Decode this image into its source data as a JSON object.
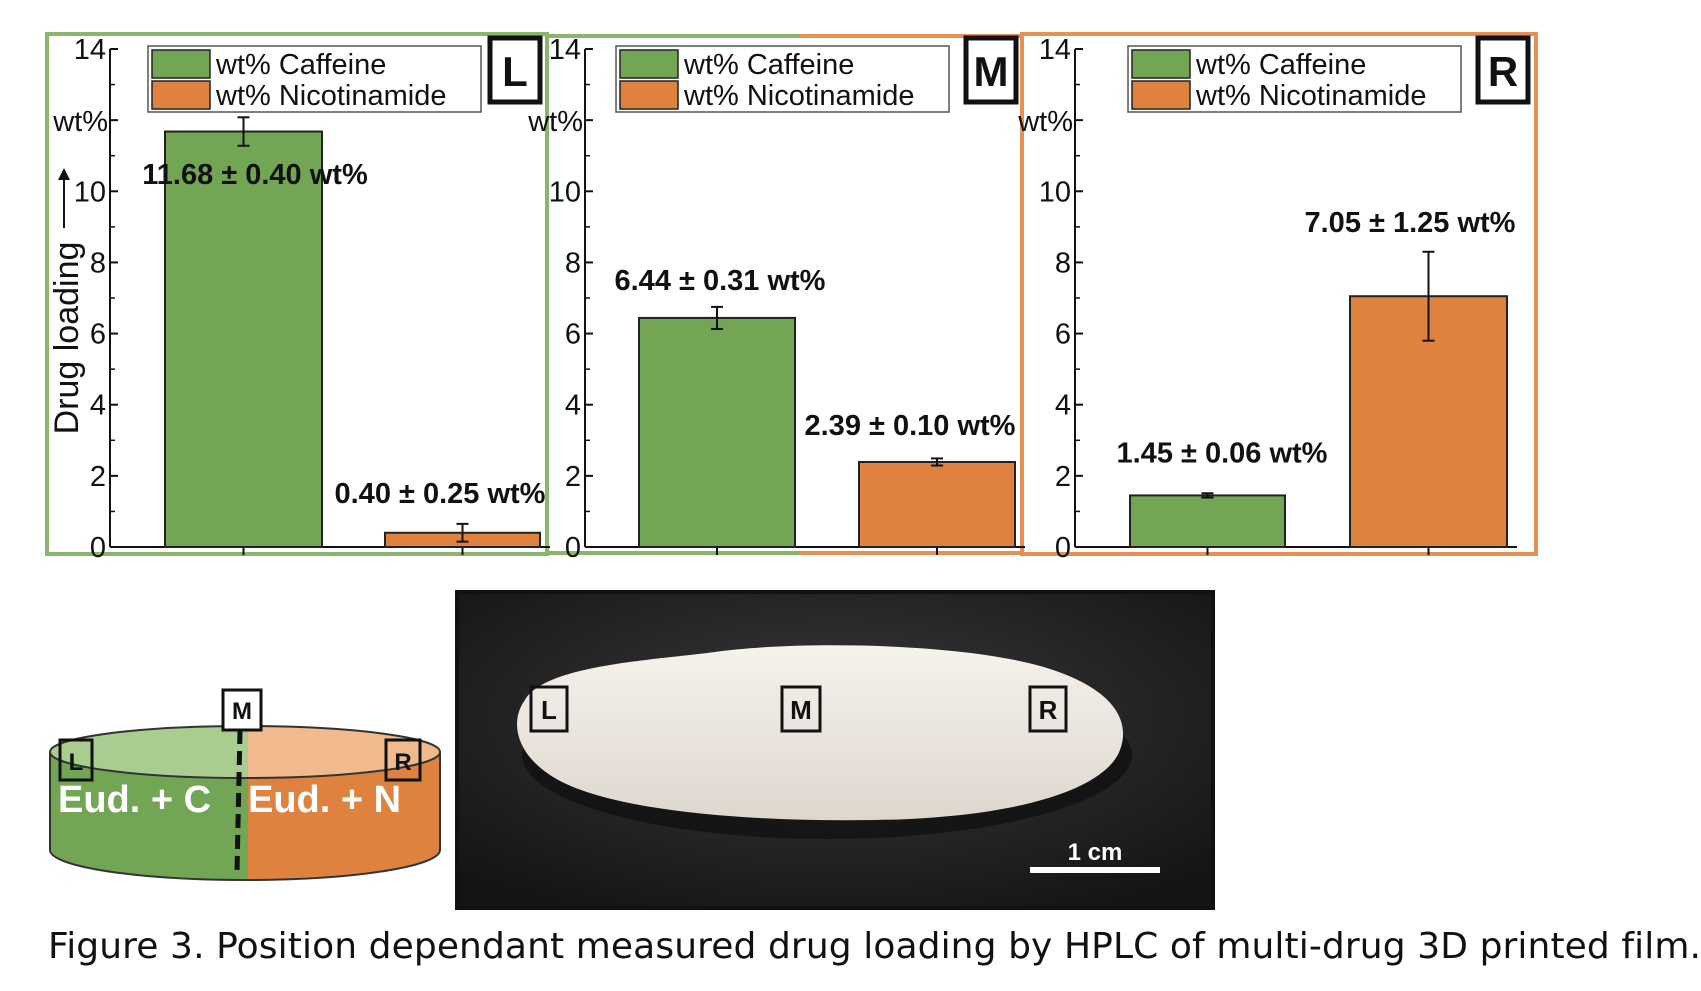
{
  "colors": {
    "caffeine": "#72a655",
    "nicotinamide": "#e0823f",
    "L_frame": "#8ab56a",
    "R_frame": "#e69055",
    "photo_bg": "#262626",
    "film": "#efeae3"
  },
  "chart_data": [
    {
      "type": "bar",
      "panel": "L",
      "categories": [
        "Caffeine",
        "Nicotinamide"
      ],
      "values": [
        11.68,
        0.4
      ],
      "errors": [
        0.4,
        0.25
      ],
      "data_labels": [
        "11.68 ± 0.40 wt%",
        "0.40 ± 0.25 wt%"
      ],
      "legend": [
        "wt% Caffeine",
        "wt% Nicotinamide"
      ],
      "ylabel": "Drug loading",
      "yunit": "wt%",
      "yticks": [
        "0",
        "2",
        "4",
        "6",
        "8",
        "10",
        "",
        "14"
      ],
      "ylim": [
        0,
        14
      ],
      "legend_position": "top"
    },
    {
      "type": "bar",
      "panel": "M",
      "categories": [
        "Caffeine",
        "Nicotinamide"
      ],
      "values": [
        6.44,
        2.39
      ],
      "errors": [
        0.31,
        0.1
      ],
      "data_labels": [
        "6.44 ± 0.31 wt%",
        "2.39 ± 0.10 wt%"
      ],
      "legend": [
        "wt% Caffeine",
        "wt% Nicotinamide"
      ],
      "yunit": "wt%",
      "yticks": [
        "0",
        "2",
        "4",
        "6",
        "8",
        "10",
        "",
        "14"
      ],
      "ylim": [
        0,
        14
      ],
      "legend_position": "top"
    },
    {
      "type": "bar",
      "panel": "R",
      "categories": [
        "Caffeine",
        "Nicotinamide"
      ],
      "values": [
        1.45,
        7.05
      ],
      "errors": [
        0.06,
        1.25
      ],
      "data_labels": [
        "1.45 ± 0.06 wt%",
        "7.05 ± 1.25 wt%"
      ],
      "legend": [
        "wt% Caffeine",
        "wt% Nicotinamide"
      ],
      "yunit": "wt%",
      "yticks": [
        "0",
        "2",
        "4",
        "6",
        "8",
        "10",
        "",
        "14"
      ],
      "ylim": [
        0,
        14
      ],
      "legend_position": "top"
    }
  ],
  "schematic": {
    "left_text": "Eud. + C",
    "right_text": "Eud. + N",
    "markers": [
      "L",
      "M",
      "R"
    ]
  },
  "photo": {
    "markers": [
      "L",
      "M",
      "R"
    ],
    "scale_text": "1 cm"
  },
  "caption": "Figure 3. Position dependant measured drug loading by HPLC of multi-drug 3D printed film."
}
